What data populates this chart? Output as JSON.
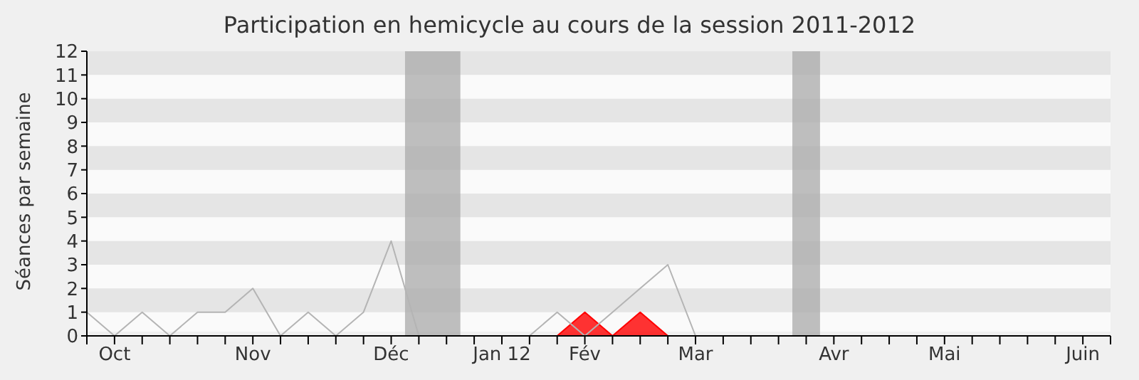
{
  "chart_data": {
    "type": "line",
    "title": "Participation en hemicycle au cours de la session 2011-2012",
    "ylabel": "Séances par semaine",
    "x": [
      "2011-09-29",
      "2011-10-06",
      "2011-10-13",
      "2011-10-20",
      "2011-10-27",
      "2011-11-03",
      "2011-11-10",
      "2011-11-17",
      "2011-11-24",
      "2011-12-01",
      "2011-12-08",
      "2011-12-15",
      "2011-12-22",
      "2011-12-29",
      "2012-01-05",
      "2012-01-12",
      "2012-01-19",
      "2012-01-26",
      "2012-02-02",
      "2012-02-09",
      "2012-02-16",
      "2012-02-23",
      "2012-03-01",
      "2012-03-08",
      "2012-03-15",
      "2012-03-22",
      "2012-03-29",
      "2012-04-05",
      "2012-04-12",
      "2012-04-19",
      "2012-04-26",
      "2012-05-03",
      "2012-05-10",
      "2012-05-17",
      "2012-05-24",
      "2012-05-31",
      "2012-06-07",
      "2012-06-14"
    ],
    "series": [
      {
        "color": "#b4b4b4",
        "values": [
          1,
          0,
          1,
          0,
          1,
          1,
          2,
          0,
          1,
          0,
          1,
          4,
          0,
          0,
          0,
          0,
          0,
          1,
          0,
          1,
          2,
          3,
          0,
          0,
          0,
          0,
          0,
          0,
          0,
          0,
          0,
          0,
          0,
          0,
          0,
          0,
          0,
          0
        ]
      },
      {
        "type": "area",
        "color": "#ff0000",
        "values": [
          0,
          0,
          0,
          0,
          0,
          0,
          0,
          0,
          0,
          0,
          0,
          0,
          0,
          0,
          0,
          0,
          0,
          0,
          1,
          0,
          1,
          0,
          0,
          0,
          0,
          0,
          0,
          0,
          0,
          0,
          0,
          0,
          0,
          0,
          0,
          0,
          0,
          0
        ]
      }
    ],
    "xlim": [
      "2011-09-29",
      "2012-06-14"
    ],
    "xticks": [
      {
        "value": "2011-09-29",
        "label": null
      },
      {
        "value": "2011-10-06",
        "label": "Oct"
      },
      {
        "value": "2011-10-13",
        "label": null
      },
      {
        "value": "2011-10-20",
        "label": null
      },
      {
        "value": "2011-10-27",
        "label": null
      },
      {
        "value": "2011-11-03",
        "label": null
      },
      {
        "value": "2011-11-10",
        "label": "Nov"
      },
      {
        "value": "2011-11-17",
        "label": null
      },
      {
        "value": "2011-11-24",
        "label": null
      },
      {
        "value": "2011-12-01",
        "label": null
      },
      {
        "value": "2011-12-08",
        "label": null
      },
      {
        "value": "2011-12-15",
        "label": "Déc"
      },
      {
        "value": "2011-12-22",
        "label": null
      },
      {
        "value": "2011-12-29",
        "label": null
      },
      {
        "value": "2012-01-05",
        "label": null
      },
      {
        "value": "2012-01-12",
        "label": "Jan 12"
      },
      {
        "value": "2012-01-19",
        "label": null
      },
      {
        "value": "2012-01-26",
        "label": null
      },
      {
        "value": "2012-02-02",
        "label": "Fév"
      },
      {
        "value": "2012-02-09",
        "label": null
      },
      {
        "value": "2012-02-16",
        "label": null
      },
      {
        "value": "2012-02-23",
        "label": null
      },
      {
        "value": "2012-03-01",
        "label": "Mar"
      },
      {
        "value": "2012-03-08",
        "label": null
      },
      {
        "value": "2012-03-15",
        "label": null
      },
      {
        "value": "2012-03-22",
        "label": null
      },
      {
        "value": "2012-03-29",
        "label": null
      },
      {
        "value": "2012-04-05",
        "label": "Avr"
      },
      {
        "value": "2012-04-12",
        "label": null
      },
      {
        "value": "2012-04-19",
        "label": null
      },
      {
        "value": "2012-04-26",
        "label": null
      },
      {
        "value": "2012-05-03",
        "label": "Mai"
      },
      {
        "value": "2012-05-10",
        "label": null
      },
      {
        "value": "2012-05-17",
        "label": null
      },
      {
        "value": "2012-05-24",
        "label": null
      },
      {
        "value": "2012-05-31",
        "label": null
      },
      {
        "value": "2012-06-07",
        "label": "Juin"
      },
      {
        "value": "2012-06-14",
        "label": null
      }
    ],
    "ylim": [
      0,
      12
    ],
    "yticks": [
      0,
      1,
      2,
      3,
      4,
      5,
      6,
      7,
      8,
      9,
      10,
      11,
      12
    ],
    "bands": [
      {
        "axis": "x",
        "from": "2011-12-18T12:00",
        "to": "2012-01-01T12:00",
        "color": "#aaaaaa"
      },
      {
        "axis": "x",
        "from": "2012-03-25T12:00",
        "to": "2012-04-01T12:00",
        "color": "#aaaaaa"
      }
    ],
    "legend": false,
    "marker": "none",
    "line_style": "solid"
  }
}
